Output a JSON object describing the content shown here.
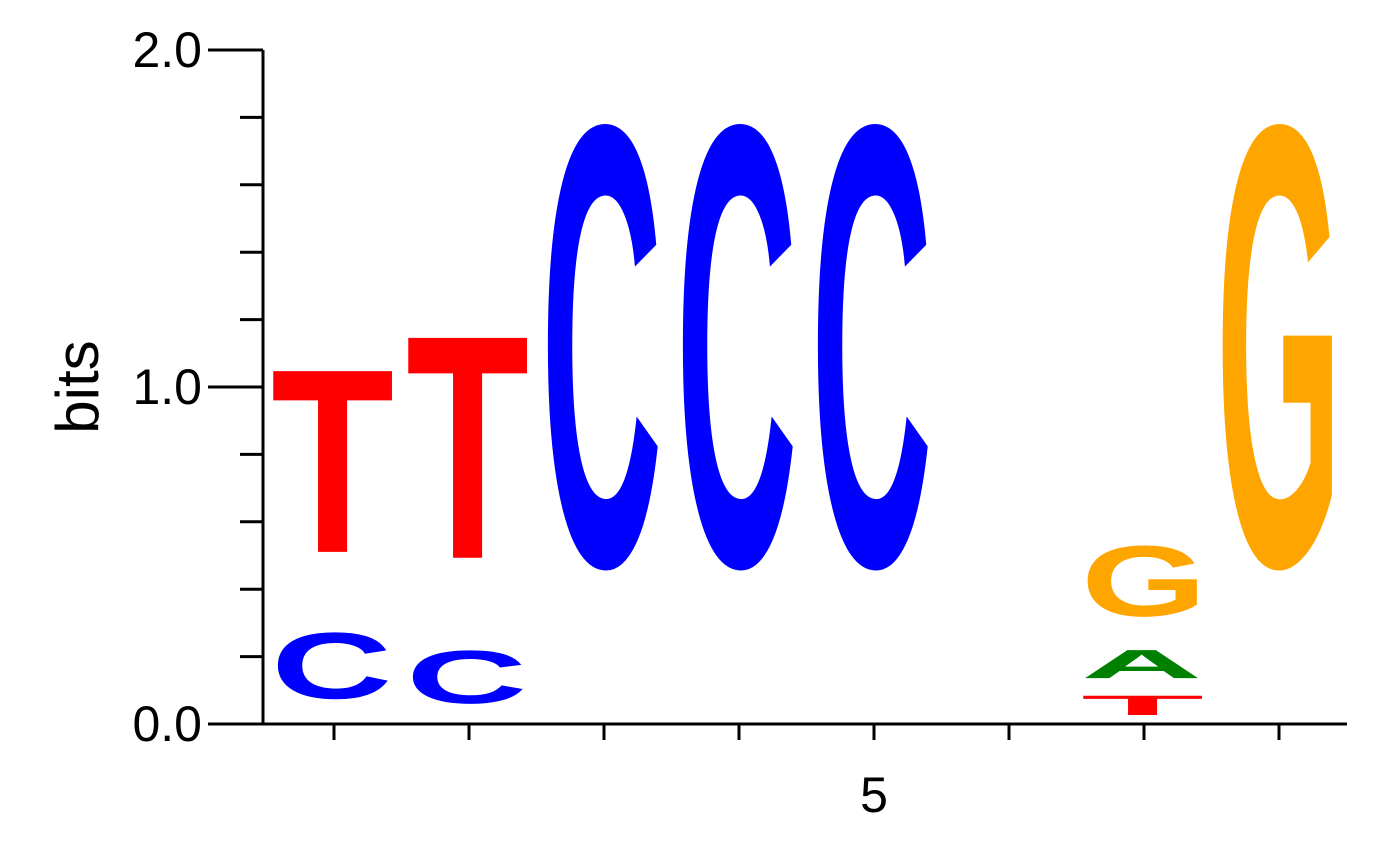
{
  "chart_data": {
    "type": "sequence-logo",
    "ylabel": "bits",
    "ylim": [
      0,
      2
    ],
    "yticks": [
      "0.0",
      "1.0",
      "2.0"
    ],
    "xtick_labels": [
      {
        "position": 5,
        "label": "5"
      }
    ],
    "colors": {
      "A": "#008000",
      "C": "#0000ff",
      "G": "#ffa500",
      "T": "#ff0000"
    },
    "positions": [
      {
        "position": 1,
        "letters": [
          {
            "base": "C",
            "bits": 0.31
          },
          {
            "base": "T",
            "bits": 0.84
          }
        ]
      },
      {
        "position": 2,
        "letters": [
          {
            "base": "C",
            "bits": 0.25
          },
          {
            "base": "T",
            "bits": 1.02
          }
        ]
      },
      {
        "position": 3,
        "letters": [
          {
            "base": "C",
            "bits": 2.0
          }
        ]
      },
      {
        "position": 4,
        "letters": [
          {
            "base": "C",
            "bits": 2.0
          }
        ]
      },
      {
        "position": 5,
        "letters": [
          {
            "base": "C",
            "bits": 2.0
          }
        ]
      },
      {
        "position": 6,
        "letters": []
      },
      {
        "position": 7,
        "letters": [
          {
            "base": "T",
            "bits": 0.1
          },
          {
            "base": "A",
            "bits": 0.14
          },
          {
            "base": "G",
            "bits": 0.33
          }
        ]
      },
      {
        "position": 8,
        "letters": [
          {
            "base": "G",
            "bits": 2.0
          }
        ]
      }
    ]
  }
}
